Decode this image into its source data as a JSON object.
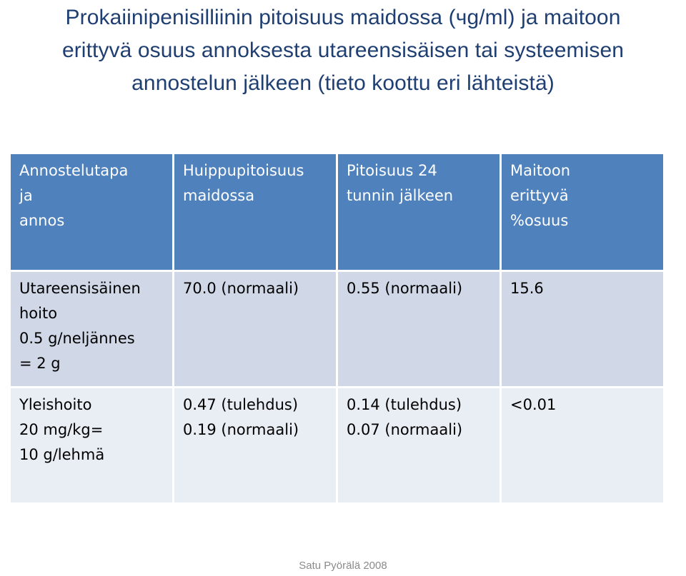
{
  "title": {
    "line1": "Prokaiinipenisilliinin pitoisuus maidossa (чg/ml) ja maitoon",
    "line2": "erittyvä osuus annoksesta utareensisäisen tai systeemisen",
    "line3": "annostelun jälkeen (tieto koottu eri lähteistä)"
  },
  "table": {
    "headers": [
      [
        "Annostelutapa",
        "ja",
        "annos"
      ],
      [
        "Huippupitoisuus",
        "maidossa"
      ],
      [
        "Pitoisuus 24",
        "tunnin jälkeen"
      ],
      [
        "Maitoon",
        "erittyvä",
        "%osuus"
      ]
    ],
    "rows": [
      [
        [
          "Utareensisäinen",
          "hoito",
          "0.5 g/neljännes",
          "= 2 g"
        ],
        [
          "70.0 (normaali)"
        ],
        [
          "0.55 (normaali)"
        ],
        [
          "15.6"
        ]
      ],
      [
        [
          "Yleishoito",
          "20 mg/kg=",
          "10 g/lehmä"
        ],
        [
          "0.47 (tulehdus)",
          "0.19 (normaali)"
        ],
        [
          "0.14 (tulehdus)",
          "0.07 (normaali)"
        ],
        [
          "<0.01"
        ]
      ]
    ]
  },
  "footer": "Satu Pyörälä 2008",
  "colors": {
    "title": "#1f3f72",
    "header_bg": "#4f81bd",
    "row1_bg": "#d0d8e8",
    "row2_bg": "#e9edf4",
    "footer": "#8a8a8a"
  }
}
